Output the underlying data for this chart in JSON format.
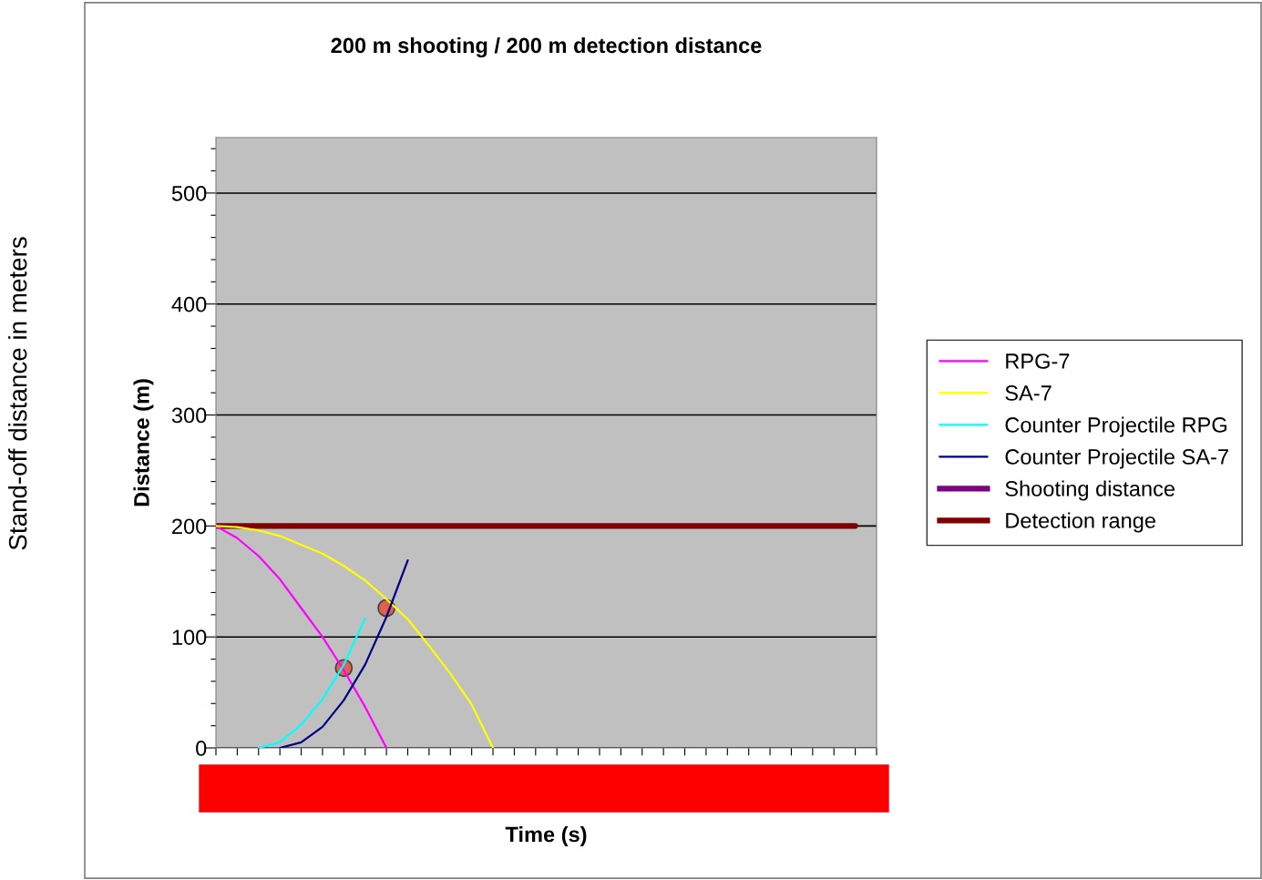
{
  "chart_data": {
    "type": "line",
    "title": "200 m shooting / 200 m detection distance",
    "xlabel": "Time (s)",
    "ylabel": "Distance (m)",
    "annotations": [
      "Stand-off distance in meters"
    ],
    "categories": [
      null,
      null,
      null,
      null,
      null,
      null,
      null,
      null,
      null,
      null,
      null,
      null,
      null,
      null,
      null,
      null,
      null,
      null,
      null,
      null,
      null,
      null,
      null,
      null,
      null,
      null,
      null,
      null,
      null,
      null,
      null,
      null
    ],
    "ylim": [
      0,
      550
    ],
    "yticks": [
      0,
      {
        "value": 20,
        "label": null
      },
      {
        "value": 40,
        "label": null
      },
      {
        "value": 60,
        "label": null
      },
      {
        "value": 80,
        "label": null
      },
      100,
      {
        "value": 120,
        "label": null
      },
      {
        "value": 140,
        "label": null
      },
      {
        "value": 160,
        "label": null
      },
      {
        "value": 180,
        "label": null
      },
      200,
      {
        "value": 220,
        "label": null
      },
      {
        "value": 240,
        "label": null
      },
      {
        "value": 260,
        "label": null
      },
      {
        "value": 280,
        "label": null
      },
      300,
      {
        "value": 320,
        "label": null
      },
      {
        "value": 340,
        "label": null
      },
      {
        "value": 360,
        "label": null
      },
      {
        "value": 380,
        "label": null
      },
      400,
      {
        "value": 420,
        "label": null
      },
      {
        "value": 440,
        "label": null
      },
      {
        "value": 460,
        "label": null
      },
      {
        "value": 480,
        "label": null
      },
      500,
      {
        "value": 520,
        "label": null
      },
      {
        "value": 540,
        "label": null
      }
    ],
    "tick_labels": "y",
    "grid": "y",
    "legend": "right",
    "marker": "none",
    "line_style": "solid",
    "series": [
      {
        "name": "RPG-7",
        "color": "#ff00ff",
        "values": [
          200,
          189,
          173,
          152,
          126,
          100,
          70,
          37,
          0,
          null,
          null,
          null,
          null,
          null,
          null,
          null,
          null,
          null,
          null,
          null,
          null,
          null,
          null,
          null,
          null,
          null,
          null,
          null,
          null,
          null,
          null,
          null
        ]
      },
      {
        "name": "SA-7",
        "color": "#ffff00",
        "values": [
          200,
          199,
          196,
          191,
          183,
          175,
          164,
          151,
          134,
          116,
          92,
          67,
          39,
          0,
          null,
          null,
          null,
          null,
          null,
          null,
          null,
          null,
          null,
          null,
          null,
          null,
          null,
          null,
          null,
          null,
          null,
          null
        ]
      },
      {
        "name": "Counter Projectile RPG",
        "color": "#00ffff",
        "values": [
          null,
          null,
          0,
          5,
          21,
          44,
          75,
          117,
          null,
          null,
          null,
          null,
          null,
          null,
          null,
          null,
          null,
          null,
          null,
          null,
          null,
          null,
          null,
          null,
          null,
          null,
          null,
          null,
          null,
          null,
          null,
          null
        ]
      },
      {
        "name": "Counter Projectile SA-7",
        "color": "#000080",
        "values": [
          null,
          null,
          null,
          0,
          5,
          19,
          43,
          75,
          118,
          169,
          null,
          null,
          null,
          null,
          null,
          null,
          null,
          null,
          null,
          null,
          null,
          null,
          null,
          null,
          null,
          null,
          null,
          null,
          null,
          null,
          null,
          null
        ]
      },
      {
        "name": "Shooting distance",
        "color": "#800080",
        "values": [
          null,
          null,
          null,
          null,
          null,
          null,
          null,
          null,
          null,
          null,
          null,
          null,
          null,
          null,
          null,
          null,
          null,
          null,
          null,
          null,
          null,
          null,
          null,
          null,
          null,
          null,
          null,
          null,
          null,
          null,
          null,
          null
        ]
      },
      {
        "name": "Detection range",
        "color": "#800000",
        "values": [
          200,
          200,
          200,
          200,
          200,
          200,
          200,
          200,
          200,
          200,
          200,
          200,
          200,
          200,
          200,
          200,
          200,
          200,
          200,
          200,
          200,
          200,
          200,
          200,
          200,
          200,
          200,
          200,
          200,
          200,
          200,
          null
        ]
      },
      {
        "type": "scatter",
        "color": "#e06050",
        "marker": "circle",
        "values": [
          null,
          null,
          null,
          null,
          null,
          null,
          72,
          null,
          126,
          null,
          null,
          null,
          null,
          null,
          null,
          null,
          null,
          null,
          null,
          null,
          null,
          null,
          null,
          null,
          null,
          null,
          null,
          null,
          null,
          null,
          null,
          null
        ]
      }
    ]
  }
}
